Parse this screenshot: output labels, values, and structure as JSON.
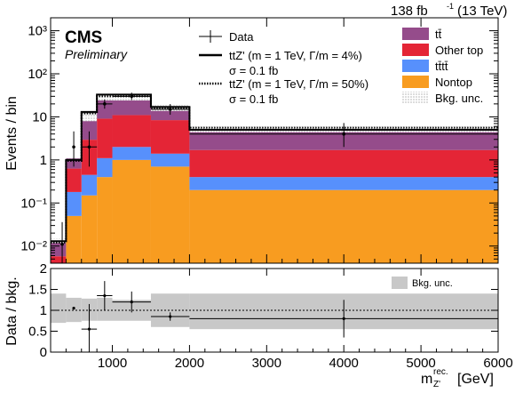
{
  "header": {
    "lumi": "138 fb",
    "lumi_sup": "-1",
    "energy": "(13 TeV)",
    "experiment": "CMS",
    "status": "Preliminary"
  },
  "colors": {
    "ttbar": "#954c8b",
    "other_top": "#e42536",
    "tttt": "#5790fc",
    "nontop": "#f89c20",
    "bkg_unc_ratio": "#c8c8c8"
  },
  "legend": {
    "data": "Data",
    "signal1_line1": "ttZ' (m = 1 TeV, Γ/m = 4%)",
    "signal1_line2": "σ = 0.1 fb",
    "signal2_line1": "ttZ' (m = 1 TeV, Γ/m = 50%)",
    "signal2_line2": "σ = 0.1 fb",
    "ttbar": "tt̄",
    "other_top": "Other top",
    "tttt": "tt̄tt̄",
    "nontop": "Nontop",
    "bkg_unc": "Bkg. unc.",
    "ratio_bkg_unc": "Bkg. unc."
  },
  "chart_data": [
    {
      "type": "area",
      "panel": "main",
      "ylabel": "Events / bin",
      "yscale": "log",
      "ylim": [
        0.004,
        2000
      ],
      "xlim": [
        200,
        6000
      ],
      "y_ticks": [
        "10⁻²",
        "10⁻¹",
        "1",
        "10",
        "10²",
        "10³"
      ],
      "bin_edges": [
        200,
        400,
        600,
        800,
        1000,
        1500,
        2000,
        6000
      ],
      "stack": [
        {
          "name": "Nontop",
          "values": [
            0.002,
            0.05,
            0.15,
            0.4,
            1.0,
            0.7,
            0.2
          ]
        },
        {
          "name": "tt̄tt̄",
          "values": [
            0.0018,
            0.13,
            0.3,
            0.7,
            1.0,
            0.7,
            0.2
          ]
        },
        {
          "name": "Other top",
          "values": [
            0.002,
            0.45,
            2.5,
            8.0,
            9.0,
            7.0,
            1.3
          ]
        },
        {
          "name": "tt̄",
          "values": [
            0.006,
            0.45,
            5.0,
            15.0,
            13.0,
            5.3,
            2.7
          ]
        }
      ],
      "signals": [
        {
          "name": "ttZ' Γ/m = 4%",
          "style": "solid",
          "values": [
            0.013,
            1.0,
            13.0,
            33.0,
            33.0,
            17.0,
            5.0
          ]
        },
        {
          "name": "ttZ' Γ/m = 50%",
          "style": "dotted",
          "values": [
            0.012,
            0.95,
            12.0,
            30.0,
            30.0,
            16.0,
            5.6
          ]
        }
      ],
      "data": {
        "x": [
          350,
          500,
          700,
          900,
          1250,
          1750,
          4000
        ],
        "y": [
          0.011,
          2.0,
          2.0,
          20.0,
          30.0,
          15.0,
          4.0
        ],
        "yerr_low": [
          0.009,
          1.3,
          1.3,
          4.5,
          5.5,
          3.8,
          2.0
        ],
        "yerr_high": [
          0.025,
          2.6,
          2.6,
          5.5,
          6.5,
          4.8,
          3.2
        ]
      },
      "bkg_unc_band": {
        "values": [
          0.015,
          1.1,
          13.5,
          36.0,
          36.0,
          19.0,
          6.0
        ]
      }
    },
    {
      "type": "line",
      "panel": "ratio",
      "ylabel": "Data / bkg.",
      "xlabel": "m",
      "xlabel_sub": "Z'",
      "xlabel_sup": "rec.",
      "xlabel_unit": "[GeV]",
      "ylim": [
        0,
        2
      ],
      "xlim": [
        200,
        6000
      ],
      "x_ticks": [
        "1000",
        "2000",
        "3000",
        "4000",
        "5000",
        "6000"
      ],
      "y_ticks": [
        "0",
        "0.5",
        "1",
        "1.5",
        "2"
      ],
      "bin_edges": [
        200,
        400,
        600,
        800,
        1000,
        1500,
        2000,
        6000
      ],
      "unc_band": [
        [
          0.7,
          1.4
        ],
        [
          0.72,
          1.3
        ],
        [
          0.75,
          1.28
        ],
        [
          0.75,
          1.3
        ],
        [
          0.75,
          1.25
        ],
        [
          0.6,
          1.4
        ],
        [
          0.55,
          1.4
        ]
      ],
      "data": {
        "x": [
          500,
          700,
          900,
          1250,
          1750,
          4000
        ],
        "y": [
          1.05,
          0.55,
          1.35,
          1.2,
          0.85,
          0.8
        ],
        "yerr": [
          0.0,
          0.6,
          0.35,
          0.25,
          0.1,
          0.45
        ],
        "xerr": [
          0,
          100,
          100,
          250,
          250,
          2000
        ]
      }
    }
  ]
}
